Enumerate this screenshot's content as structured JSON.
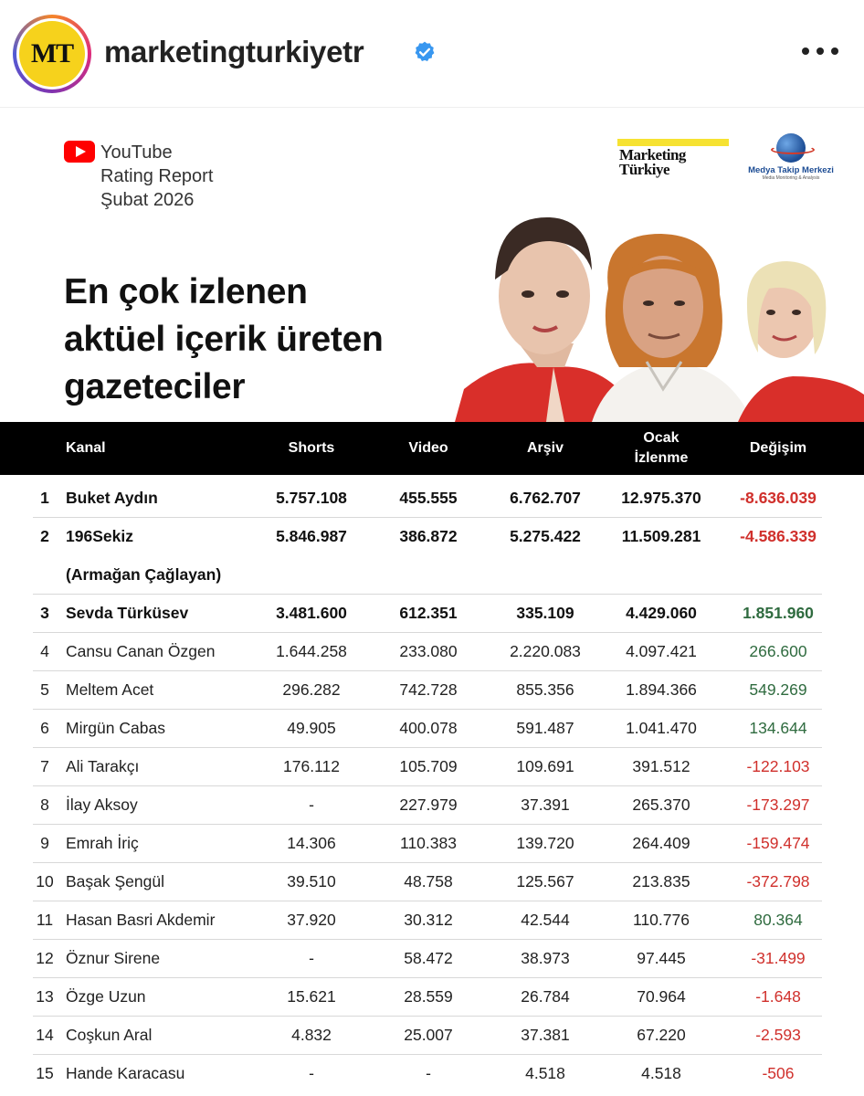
{
  "header": {
    "avatar_text": "MT",
    "username": "marketingturkiyetr"
  },
  "report": {
    "line1": "YouTube",
    "line2": "Rating Report",
    "line3": "Şubat 2026",
    "headline_1": "En çok izlenen",
    "headline_2": "aktüel içerik üreten",
    "headline_3": "gazeteciler",
    "logo_mt_1": "Marketing",
    "logo_mt_2": "Türkiye",
    "logo_mtm": "Medya Takip Merkezi",
    "logo_mtm_sub": "Media Monitoring & Analysis"
  },
  "table": {
    "headers": {
      "kanal": "Kanal",
      "shorts": "Shorts",
      "video": "Video",
      "arsiv": "Arşiv",
      "ocak_1": "Ocak",
      "ocak_2": "İzlenme",
      "degisim": "Değişim"
    },
    "rows": [
      {
        "rank": "1",
        "name": "Buket Aydın",
        "sub": "",
        "shorts": "5.757.108",
        "video": "455.555",
        "arsiv": "6.762.707",
        "ocak": "12.975.370",
        "degisim": "-8.636.039",
        "trend": "neg",
        "bold": true
      },
      {
        "rank": "2",
        "name": "196Sekiz",
        "sub": "(Armağan Çağlayan)",
        "shorts": "5.846.987",
        "video": "386.872",
        "arsiv": "5.275.422",
        "ocak": "11.509.281",
        "degisim": "-4.586.339",
        "trend": "neg",
        "bold": true
      },
      {
        "rank": "3",
        "name": "Sevda Türküsev",
        "sub": "",
        "shorts": "3.481.600",
        "video": "612.351",
        "arsiv": "335.109",
        "ocak": "4.429.060",
        "degisim": "1.851.960",
        "trend": "pos",
        "bold": true
      },
      {
        "rank": "4",
        "name": "Cansu Canan Özgen",
        "sub": "",
        "shorts": "1.644.258",
        "video": "233.080",
        "arsiv": "2.220.083",
        "ocak": "4.097.421",
        "degisim": "266.600",
        "trend": "pos",
        "bold": false
      },
      {
        "rank": "5",
        "name": "Meltem Acet",
        "sub": "",
        "shorts": "296.282",
        "video": "742.728",
        "arsiv": "855.356",
        "ocak": "1.894.366",
        "degisim": "549.269",
        "trend": "pos",
        "bold": false
      },
      {
        "rank": "6",
        "name": "Mirgün Cabas",
        "sub": "",
        "shorts": "49.905",
        "video": "400.078",
        "arsiv": "591.487",
        "ocak": "1.041.470",
        "degisim": "134.644",
        "trend": "pos",
        "bold": false
      },
      {
        "rank": "7",
        "name": "Ali Tarakçı",
        "sub": "",
        "shorts": "176.112",
        "video": "105.709",
        "arsiv": "109.691",
        "ocak": "391.512",
        "degisim": "-122.103",
        "trend": "neg",
        "bold": false
      },
      {
        "rank": "8",
        "name": "İlay Aksoy",
        "sub": "",
        "shorts": "-",
        "video": "227.979",
        "arsiv": "37.391",
        "ocak": "265.370",
        "degisim": "-173.297",
        "trend": "neg",
        "bold": false
      },
      {
        "rank": "9",
        "name": "Emrah İriç",
        "sub": "",
        "shorts": "14.306",
        "video": "110.383",
        "arsiv": "139.720",
        "ocak": "264.409",
        "degisim": "-159.474",
        "trend": "neg",
        "bold": false
      },
      {
        "rank": "10",
        "name": "Başak Şengül",
        "sub": "",
        "shorts": "39.510",
        "video": "48.758",
        "arsiv": "125.567",
        "ocak": "213.835",
        "degisim": "-372.798",
        "trend": "neg",
        "bold": false
      },
      {
        "rank": "11",
        "name": "Hasan Basri Akdemir",
        "sub": "",
        "shorts": "37.920",
        "video": "30.312",
        "arsiv": "42.544",
        "ocak": "110.776",
        "degisim": "80.364",
        "trend": "pos",
        "bold": false
      },
      {
        "rank": "12",
        "name": "Öznur Sirene",
        "sub": "",
        "shorts": "-",
        "video": "58.472",
        "arsiv": "38.973",
        "ocak": "97.445",
        "degisim": "-31.499",
        "trend": "neg",
        "bold": false
      },
      {
        "rank": "13",
        "name": "Özge Uzun",
        "sub": "",
        "shorts": "15.621",
        "video": "28.559",
        "arsiv": "26.784",
        "ocak": "70.964",
        "degisim": "-1.648",
        "trend": "neg",
        "bold": false
      },
      {
        "rank": "14",
        "name": "Coşkun Aral",
        "sub": "",
        "shorts": "4.832",
        "video": "25.007",
        "arsiv": "37.381",
        "ocak": "67.220",
        "degisim": "-2.593",
        "trend": "neg",
        "bold": false
      },
      {
        "rank": "15",
        "name": "Hande Karacasu",
        "sub": "",
        "shorts": "-",
        "video": "-",
        "arsiv": "4.518",
        "ocak": "4.518",
        "degisim": "-506",
        "trend": "neg",
        "bold": false
      }
    ]
  },
  "colors": {
    "negative": "#d0302c",
    "positive": "#2f6b3f",
    "header_bg": "#000000",
    "accent_yellow": "#f6d21c"
  },
  "icons": [
    "verified-badge-icon",
    "more-options-icon",
    "youtube-icon",
    "globe-icon"
  ]
}
